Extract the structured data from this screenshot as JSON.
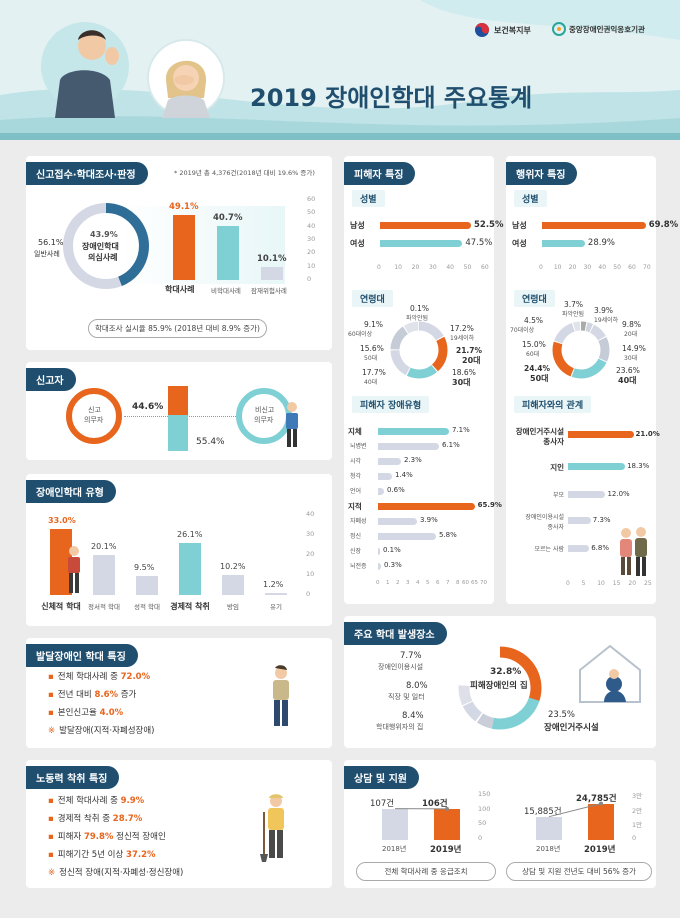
{
  "header": {
    "title": "2019 장애인학대 주요통계",
    "org1": "보건복지부",
    "org2": "중앙장애인권익옹호기관"
  },
  "reports": {
    "section_title": "신고접수·학대조사·판정",
    "note": "* 2019년 총 4,376건(2018년 대비 19.6% 증가)",
    "donut_center_pct": "43.9%",
    "donut_center_label1": "장애인학대",
    "donut_center_label2": "의심사례",
    "donut_outer_pct": "56.1%",
    "donut_outer_label": "일반사례",
    "bars": [
      {
        "label": "학대사례",
        "value": 49.1,
        "value_label": "49.1%"
      },
      {
        "label": "비학대사례",
        "value": 40.7,
        "value_label": "40.7%"
      },
      {
        "label": "잠재위험사례",
        "value": 10.1,
        "value_label": "10.1%"
      }
    ],
    "axis": [
      "60",
      "50",
      "40",
      "30",
      "20",
      "10",
      "0"
    ],
    "footer": "학대조사 실시율 85.9% (2018년 대비 8.9% 증가)"
  },
  "reporter": {
    "section_title": "신고자",
    "left_label1": "신고",
    "left_label2": "의무자",
    "left_pct": "44.6%",
    "right_pct": "55.4%",
    "right_label1": "비신고",
    "right_label2": "의무자"
  },
  "types": {
    "section_title": "장애인학대 유형",
    "axis": [
      "40",
      "30",
      "20",
      "10",
      "0"
    ],
    "bars": [
      {
        "label": "신체적 학대",
        "value": 33.0,
        "value_label": "33.0%",
        "highlight": true
      },
      {
        "label": "정서적 학대",
        "value": 20.1,
        "value_label": "20.1%",
        "highlight": false
      },
      {
        "label": "성적 학대",
        "value": 9.5,
        "value_label": "9.5%",
        "highlight": false
      },
      {
        "label": "경제적 착취",
        "value": 26.1,
        "value_label": "26.1%",
        "highlight": true
      },
      {
        "label": "방임",
        "value": 10.2,
        "value_label": "10.2%",
        "highlight": false
      },
      {
        "label": "유기",
        "value": 1.2,
        "value_label": "1.2%",
        "highlight": false
      }
    ]
  },
  "devdisab": {
    "section_title": "발달장애인 학대 특징",
    "items": [
      {
        "pre": "전체 학대사례 중 ",
        "hl": "72.0%",
        "post": ""
      },
      {
        "pre": "전년 대비 ",
        "hl": "8.6%",
        "post": " 증가"
      },
      {
        "pre": "본인신고율 ",
        "hl": "4.0%",
        "post": ""
      },
      {
        "pre": "발달장애(지적·자폐성장애)",
        "hl": "",
        "post": ""
      }
    ]
  },
  "labor": {
    "section_title": "노동력 착취 특징",
    "items": [
      {
        "pre": "전체 학대사례 중 ",
        "hl": "9.9%",
        "post": ""
      },
      {
        "pre": "경제적 착취 중 ",
        "hl": "28.7%",
        "post": ""
      },
      {
        "pre": "피해자 ",
        "hl": "79.8%",
        "post": " 정신적 장애인"
      },
      {
        "pre": "피해기간 5년 이상 ",
        "hl": "37.2%",
        "post": ""
      },
      {
        "pre": "정신적 장애(지적·자폐성·정신장애)",
        "hl": "",
        "post": ""
      }
    ]
  },
  "victim": {
    "section_title": "피해자 특징",
    "gender_title": "성별",
    "gender": [
      {
        "label": "남성",
        "value": 52.5,
        "value_label": "52.5%"
      },
      {
        "label": "여성",
        "value": 47.5,
        "value_label": "47.5%"
      }
    ],
    "gender_axis": [
      "0",
      "10",
      "20",
      "30",
      "40",
      "50",
      "60"
    ],
    "age_title": "연령대",
    "age": [
      {
        "label": "파악안됨",
        "pct": "0.1%"
      },
      {
        "label": "19세이하",
        "pct": "17.2%"
      },
      {
        "label": "20대",
        "pct": "21.7%"
      },
      {
        "label": "30대",
        "pct": "18.6%"
      },
      {
        "label": "40대",
        "pct": "17.7%"
      },
      {
        "label": "50대",
        "pct": "15.6%"
      },
      {
        "label": "60대이상",
        "pct": "9.1%"
      }
    ],
    "disab_title": "피해자 장애유형",
    "disab": [
      {
        "label": "지체",
        "value": 7.1,
        "value_label": "7.1%"
      },
      {
        "label": "뇌병변",
        "value": 6.1,
        "value_label": "6.1%"
      },
      {
        "label": "시각",
        "value": 2.3,
        "value_label": "2.3%"
      },
      {
        "label": "청각",
        "value": 1.4,
        "value_label": "1.4%"
      },
      {
        "label": "언어",
        "value": 0.6,
        "value_label": "0.6%"
      },
      {
        "label": "지적",
        "value": 65.9,
        "value_label": "65.9%"
      },
      {
        "label": "자폐성",
        "value": 3.9,
        "value_label": "3.9%"
      },
      {
        "label": "정신",
        "value": 5.8,
        "value_label": "5.8%"
      },
      {
        "label": "신장",
        "value": 0.1,
        "value_label": "0.1%"
      },
      {
        "label": "뇌전증",
        "value": 0.3,
        "value_label": "0.3%"
      }
    ],
    "disab_axis": [
      "0",
      "1",
      "2",
      "3",
      "4",
      "5",
      "6",
      "7",
      "8",
      "60",
      "65",
      "70"
    ]
  },
  "offender": {
    "section_title": "행위자 특징",
    "gender_title": "성별",
    "gender": [
      {
        "label": "남성",
        "value": 69.8,
        "value_label": "69.8%"
      },
      {
        "label": "여성",
        "value": 28.9,
        "value_label": "28.9%"
      }
    ],
    "gender_axis": [
      "0",
      "10",
      "20",
      "30",
      "40",
      "50",
      "60",
      "70"
    ],
    "age_title": "연령대",
    "age": [
      {
        "label": "파악안됨",
        "pct": "3.7%"
      },
      {
        "label": "19세이하",
        "pct": "3.9%"
      },
      {
        "label": "20대",
        "pct": "9.8%"
      },
      {
        "label": "30대",
        "pct": "14.9%"
      },
      {
        "label": "40대",
        "pct": "23.6%"
      },
      {
        "label": "50대",
        "pct": "24.4%"
      },
      {
        "label": "60대",
        "pct": "15.0%"
      },
      {
        "label": "70대이상",
        "pct": "4.5%"
      }
    ],
    "rel_title": "피해자와의 관계",
    "rel": [
      {
        "label1": "장애인거주시설",
        "label2": "종사자",
        "value": 21.0,
        "value_label": "21.0%"
      },
      {
        "label1": "지인",
        "label2": "",
        "value": 18.3,
        "value_label": "18.3%"
      },
      {
        "label1": "부모",
        "label2": "",
        "value": 12.0,
        "value_label": "12.0%"
      },
      {
        "label1": "장애인이용시설",
        "label2": "종사자",
        "value": 7.3,
        "value_label": "7.3%"
      },
      {
        "label1": "모르는 사람",
        "label2": "",
        "value": 6.8,
        "value_label": "6.8%"
      }
    ],
    "rel_axis": [
      "0",
      "5",
      "10",
      "15",
      "20",
      "25"
    ]
  },
  "places": {
    "section_title": "주요 학대 발생장소",
    "items": [
      {
        "label": "장애인이용시설",
        "pct": "7.7%"
      },
      {
        "label": "직장 및 일터",
        "pct": "8.0%"
      },
      {
        "label": "학대행위자의 집",
        "pct": "8.4%"
      },
      {
        "label": "피해장애인의 집",
        "pct": "32.8%"
      },
      {
        "label": "장애인거주시설",
        "pct": "23.5%"
      }
    ]
  },
  "support": {
    "section_title": "상담 및 지원",
    "left": {
      "v2018": "107건",
      "v2019": "106건",
      "y2018": "2018년",
      "y2019": "2019년",
      "axis": [
        "150",
        "100",
        "50",
        "0"
      ],
      "footer": "전체 학대사례 중 응급조치"
    },
    "right": {
      "v2018": "15,885건",
      "v2019": "24,785건",
      "y2018": "2018년",
      "y2019": "2019년",
      "axis": [
        "3만",
        "2만",
        "1만",
        "0"
      ],
      "footer": "상담 및 지원 전년도 대비 56% 증가"
    }
  },
  "colors": {
    "navy": "#1f4e6e",
    "orange": "#e8651d",
    "teal": "#7fd0d4",
    "gray": "#d4d8e4"
  }
}
